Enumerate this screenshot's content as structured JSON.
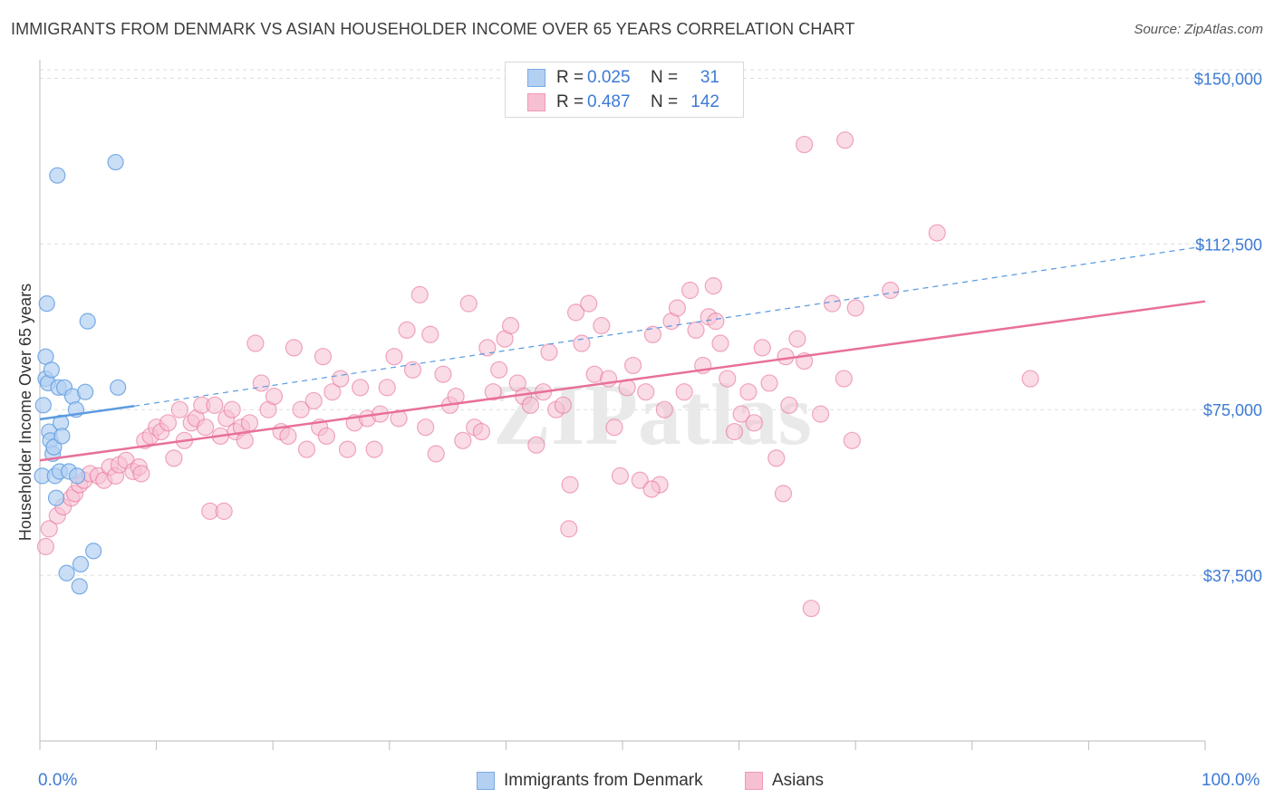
{
  "title": "IMMIGRANTS FROM DENMARK VS ASIAN HOUSEHOLDER INCOME OVER 65 YEARS CORRELATION CHART",
  "source": "Source: ZipAtlas.com",
  "watermark": "ZIPatlas",
  "legend": {
    "rows": [
      {
        "r_label": "R =",
        "r_value": "0.025",
        "n_label": "N =",
        "n_value": "31"
      },
      {
        "r_label": "R =",
        "r_value": "0.487",
        "n_label": "N =",
        "n_value": "142"
      }
    ]
  },
  "bottom_legend": {
    "series_a": "Immigrants from Denmark",
    "series_b": "Asians"
  },
  "x_axis": {
    "min_label": "0.0%",
    "max_label": "100.0%"
  },
  "colors": {
    "blue": "#5b9be0",
    "blue_fill": "#b3d0f2",
    "pink": "#e8709a",
    "pink_fill": "#f6bfd2",
    "tick_label": "#3d7bd4",
    "grid": "#dddddd"
  },
  "chart_data": {
    "type": "scatter",
    "title": "IMMIGRANTS FROM DENMARK VS ASIAN HOUSEHOLDER INCOME OVER 65 YEARS CORRELATION CHART",
    "xlabel": "",
    "ylabel": "Householder Income Over 65 years",
    "xlim": [
      0,
      100
    ],
    "ylim": [
      0,
      155000
    ],
    "y_ticks": [
      37500,
      75000,
      112500,
      150000
    ],
    "y_tick_labels": [
      "$37,500",
      "$75,000",
      "$112,500",
      "$150,000"
    ],
    "x_tick_labels": [
      "0.0%",
      "100.0%"
    ],
    "grid": true,
    "legend_position": "top-center",
    "series": [
      {
        "name": "Immigrants from Denmark",
        "color": "#5b9be0",
        "r": 0.025,
        "n": 31,
        "trend": {
          "x": [
            0,
            8.1
          ],
          "y": [
            72800,
            75800
          ],
          "extended_to_x": 100,
          "extended_y": 112000
        },
        "points": [
          [
            0.2,
            60000
          ],
          [
            0.3,
            76000
          ],
          [
            0.5,
            82000
          ],
          [
            0.5,
            87000
          ],
          [
            0.6,
            99000
          ],
          [
            0.7,
            81000
          ],
          [
            0.8,
            70000
          ],
          [
            0.9,
            68000
          ],
          [
            1.0,
            84000
          ],
          [
            1.1,
            65000
          ],
          [
            1.2,
            66500
          ],
          [
            1.3,
            60000
          ],
          [
            1.4,
            55000
          ],
          [
            1.5,
            128000
          ],
          [
            1.6,
            80000
          ],
          [
            1.7,
            61000
          ],
          [
            1.8,
            72000
          ],
          [
            1.9,
            69000
          ],
          [
            2.1,
            80000
          ],
          [
            2.3,
            38000
          ],
          [
            2.5,
            61000
          ],
          [
            2.8,
            78000
          ],
          [
            3.1,
            75000
          ],
          [
            3.2,
            60000
          ],
          [
            3.4,
            35000
          ],
          [
            3.5,
            40000
          ],
          [
            3.9,
            79000
          ],
          [
            4.1,
            95000
          ],
          [
            4.6,
            43000
          ],
          [
            6.5,
            131000
          ],
          [
            6.7,
            80000
          ]
        ]
      },
      {
        "name": "Asians",
        "color": "#e8709a",
        "r": 0.487,
        "n": 142,
        "trend": {
          "x": [
            0,
            100
          ],
          "y": [
            63500,
            99500
          ]
        },
        "points": [
          [
            0.5,
            44000
          ],
          [
            0.8,
            48000
          ],
          [
            1.5,
            51000
          ],
          [
            2.0,
            53000
          ],
          [
            2.7,
            55000
          ],
          [
            3.0,
            56000
          ],
          [
            3.4,
            58000
          ],
          [
            3.8,
            59000
          ],
          [
            4.3,
            60500
          ],
          [
            5.0,
            60000
          ],
          [
            5.5,
            59000
          ],
          [
            6.0,
            62000
          ],
          [
            6.5,
            60000
          ],
          [
            6.8,
            62500
          ],
          [
            7.4,
            63500
          ],
          [
            8.0,
            61000
          ],
          [
            8.5,
            62000
          ],
          [
            8.7,
            60500
          ],
          [
            9.0,
            68000
          ],
          [
            9.5,
            69000
          ],
          [
            10.0,
            71000
          ],
          [
            10.4,
            70000
          ],
          [
            11.0,
            72000
          ],
          [
            11.5,
            64000
          ],
          [
            12.0,
            75000
          ],
          [
            12.4,
            68000
          ],
          [
            13.0,
            72000
          ],
          [
            13.4,
            73000
          ],
          [
            13.9,
            76000
          ],
          [
            14.2,
            71000
          ],
          [
            14.6,
            52000
          ],
          [
            15.0,
            76000
          ],
          [
            15.5,
            69000
          ],
          [
            16.0,
            73000
          ],
          [
            16.5,
            75000
          ],
          [
            16.8,
            70000
          ],
          [
            17.3,
            71000
          ],
          [
            17.6,
            68000
          ],
          [
            18.0,
            72000
          ],
          [
            18.5,
            90000
          ],
          [
            19.0,
            81000
          ],
          [
            19.6,
            75000
          ],
          [
            20.1,
            78000
          ],
          [
            20.7,
            70000
          ],
          [
            21.3,
            69000
          ],
          [
            21.8,
            89000
          ],
          [
            22.4,
            75000
          ],
          [
            22.9,
            66000
          ],
          [
            23.5,
            77000
          ],
          [
            24.0,
            71000
          ],
          [
            24.6,
            69000
          ],
          [
            25.1,
            79000
          ],
          [
            25.8,
            82000
          ],
          [
            26.4,
            66000
          ],
          [
            27.0,
            72000
          ],
          [
            27.5,
            80000
          ],
          [
            28.1,
            73000
          ],
          [
            28.7,
            66000
          ],
          [
            29.2,
            74000
          ],
          [
            29.8,
            80000
          ],
          [
            30.4,
            87000
          ],
          [
            30.8,
            73000
          ],
          [
            31.5,
            93000
          ],
          [
            32.0,
            84000
          ],
          [
            32.6,
            101000
          ],
          [
            33.1,
            71000
          ],
          [
            33.5,
            92000
          ],
          [
            34.0,
            65000
          ],
          [
            34.6,
            83000
          ],
          [
            35.2,
            76000
          ],
          [
            35.7,
            78000
          ],
          [
            36.3,
            68000
          ],
          [
            36.8,
            99000
          ],
          [
            37.3,
            71000
          ],
          [
            37.9,
            70000
          ],
          [
            38.4,
            89000
          ],
          [
            38.9,
            79000
          ],
          [
            39.4,
            84000
          ],
          [
            39.9,
            91000
          ],
          [
            40.4,
            94000
          ],
          [
            41.0,
            81000
          ],
          [
            41.5,
            78000
          ],
          [
            42.1,
            76000
          ],
          [
            42.6,
            67000
          ],
          [
            43.2,
            79000
          ],
          [
            43.7,
            88000
          ],
          [
            44.3,
            75000
          ],
          [
            44.9,
            76000
          ],
          [
            45.4,
            48000
          ],
          [
            46.0,
            97000
          ],
          [
            46.5,
            90000
          ],
          [
            47.1,
            99000
          ],
          [
            47.6,
            83000
          ],
          [
            48.2,
            94000
          ],
          [
            48.8,
            82000
          ],
          [
            49.3,
            71000
          ],
          [
            49.8,
            60000
          ],
          [
            50.4,
            80000
          ],
          [
            50.9,
            85000
          ],
          [
            51.5,
            59000
          ],
          [
            52.0,
            79000
          ],
          [
            52.6,
            92000
          ],
          [
            53.2,
            58000
          ],
          [
            53.6,
            75000
          ],
          [
            54.2,
            95000
          ],
          [
            54.7,
            98000
          ],
          [
            55.3,
            79000
          ],
          [
            55.8,
            102000
          ],
          [
            56.3,
            93000
          ],
          [
            56.9,
            85000
          ],
          [
            57.4,
            96000
          ],
          [
            58.0,
            95000
          ],
          [
            58.4,
            90000
          ],
          [
            59.0,
            82000
          ],
          [
            59.6,
            70000
          ],
          [
            60.2,
            74000
          ],
          [
            60.8,
            79000
          ],
          [
            61.3,
            72000
          ],
          [
            62.0,
            89000
          ],
          [
            62.6,
            81000
          ],
          [
            63.2,
            64000
          ],
          [
            63.8,
            56000
          ],
          [
            64.3,
            76000
          ],
          [
            65.0,
            91000
          ],
          [
            65.6,
            86000
          ],
          [
            66.2,
            30000
          ],
          [
            67.0,
            74000
          ],
          [
            68.0,
            99000
          ],
          [
            69.0,
            82000
          ],
          [
            69.7,
            68000
          ],
          [
            65.6,
            135000
          ],
          [
            69.1,
            136000
          ],
          [
            70.0,
            98000
          ],
          [
            73.0,
            102000
          ],
          [
            77.0,
            115000
          ],
          [
            85.0,
            82000
          ],
          [
            52.5,
            57000
          ],
          [
            45.5,
            58000
          ],
          [
            64.0,
            87000
          ],
          [
            57.8,
            103000
          ],
          [
            24.3,
            87000
          ],
          [
            15.8,
            52000
          ]
        ]
      }
    ]
  }
}
